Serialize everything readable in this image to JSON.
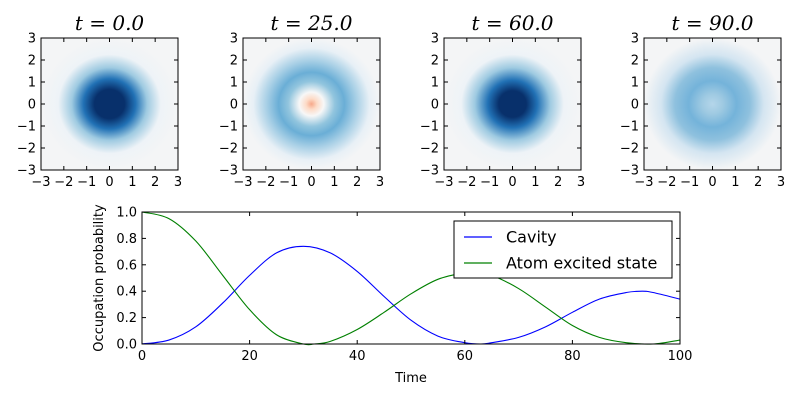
{
  "chart_data": [
    {
      "type": "heatmap",
      "title": "t = 0.0",
      "xlim": [
        -3,
        3
      ],
      "ylim": [
        -3,
        3
      ],
      "xticks": [
        "−3",
        "−2",
        "−1",
        "0",
        "1",
        "2",
        "3"
      ],
      "yticks": [
        "−3",
        "−2",
        "−1",
        "0",
        "1",
        "2",
        "3"
      ],
      "colormap": "RdBu",
      "center": "dark-blue",
      "ring": "none"
    },
    {
      "type": "heatmap",
      "title": "t = 25.0",
      "xlim": [
        -3,
        3
      ],
      "ylim": [
        -3,
        3
      ],
      "xticks": [
        "−3",
        "−2",
        "−1",
        "0",
        "1",
        "2",
        "3"
      ],
      "yticks": [
        "−3",
        "−2",
        "−1",
        "0",
        "1",
        "2",
        "3"
      ],
      "colormap": "RdBu",
      "center": "red",
      "ring": "light-blue"
    },
    {
      "type": "heatmap",
      "title": "t = 60.0",
      "xlim": [
        -3,
        3
      ],
      "ylim": [
        -3,
        3
      ],
      "xticks": [
        "−3",
        "−2",
        "−1",
        "0",
        "1",
        "2",
        "3"
      ],
      "yticks": [
        "−3",
        "−2",
        "−1",
        "0",
        "1",
        "2",
        "3"
      ],
      "colormap": "RdBu",
      "center": "dark-blue",
      "ring": "none"
    },
    {
      "type": "heatmap",
      "title": "t = 90.0",
      "xlim": [
        -3,
        3
      ],
      "ylim": [
        -3,
        3
      ],
      "xticks": [
        "−3",
        "−2",
        "−1",
        "0",
        "1",
        "2",
        "3"
      ],
      "yticks": [
        "−3",
        "−2",
        "−1",
        "0",
        "1",
        "2",
        "3"
      ],
      "colormap": "RdBu",
      "center": "pale-blue",
      "ring": "light-blue"
    },
    {
      "type": "line",
      "xlabel": "Time",
      "ylabel": "Occupation probability",
      "xlim": [
        0,
        100
      ],
      "ylim": [
        0,
        1
      ],
      "xticks": [
        "0",
        "20",
        "40",
        "60",
        "80",
        "100"
      ],
      "yticks": [
        "0.0",
        "0.2",
        "0.4",
        "0.6",
        "0.8",
        "1.0"
      ],
      "legend_position": "top-right",
      "series": [
        {
          "name": "Cavity",
          "color": "#0000ff",
          "x": [
            0,
            5,
            10,
            15,
            20,
            25,
            30,
            35,
            40,
            45,
            50,
            55,
            60,
            63,
            65,
            70,
            75,
            80,
            85,
            90,
            93,
            95,
            100
          ],
          "y": [
            0.0,
            0.03,
            0.13,
            0.31,
            0.52,
            0.69,
            0.74,
            0.69,
            0.55,
            0.36,
            0.18,
            0.06,
            0.01,
            0.0,
            0.01,
            0.05,
            0.13,
            0.24,
            0.34,
            0.39,
            0.4,
            0.39,
            0.34
          ]
        },
        {
          "name": "Atom excited state",
          "color": "#008000",
          "x": [
            0,
            5,
            10,
            15,
            20,
            25,
            30,
            32,
            35,
            40,
            45,
            50,
            55,
            60,
            62,
            65,
            70,
            75,
            80,
            85,
            90,
            95,
            100
          ],
          "y": [
            1.0,
            0.95,
            0.78,
            0.52,
            0.26,
            0.07,
            0.0,
            0.0,
            0.02,
            0.11,
            0.24,
            0.38,
            0.49,
            0.54,
            0.54,
            0.52,
            0.42,
            0.28,
            0.14,
            0.05,
            0.01,
            0.0,
            0.03
          ]
        }
      ]
    }
  ]
}
